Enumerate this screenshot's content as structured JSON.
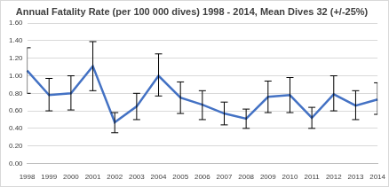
{
  "chart_data": {
    "type": "line",
    "title": "Annual Fatality Rate (per 100 000 dives) 1998 - 2014, Mean Dives 32 (+/-25%)",
    "categories": [
      "1998",
      "1999",
      "2000",
      "2001",
      "2002",
      "2003",
      "2004",
      "2005",
      "2006",
      "2007",
      "2008",
      "2009",
      "2010",
      "2011",
      "2012",
      "2013",
      "2014"
    ],
    "values": [
      1.06,
      0.78,
      0.8,
      1.11,
      0.47,
      0.65,
      1.0,
      0.75,
      0.67,
      0.57,
      0.51,
      0.76,
      0.78,
      0.52,
      0.79,
      0.66,
      0.73
    ],
    "error_low": [
      0.8,
      0.6,
      0.61,
      0.83,
      0.35,
      0.5,
      0.77,
      0.57,
      0.5,
      0.44,
      0.4,
      0.58,
      0.58,
      0.4,
      0.6,
      0.5,
      0.56
    ],
    "error_high": [
      1.32,
      0.97,
      1.0,
      1.39,
      0.58,
      0.8,
      1.25,
      0.93,
      0.83,
      0.7,
      0.62,
      0.94,
      0.98,
      0.64,
      1.0,
      0.83,
      0.92
    ],
    "color": "#4472c4",
    "ylim": [
      0,
      1.6
    ],
    "yticks": [
      {
        "value": 0,
        "label": "0.00"
      },
      {
        "value": 0.2,
        "label": "0.20"
      },
      {
        "value": 0.4,
        "label": "0.40"
      },
      {
        "value": 0.6,
        "label": "0.60"
      },
      {
        "value": 0.8,
        "label": "0.80"
      },
      {
        "value": 1.0,
        "label": "1.00"
      },
      {
        "value": 1.2,
        "label": "1.20"
      },
      {
        "value": 1.4,
        "label": "1.40"
      },
      {
        "value": 1.6,
        "label": "1.60"
      }
    ],
    "grid": true
  }
}
